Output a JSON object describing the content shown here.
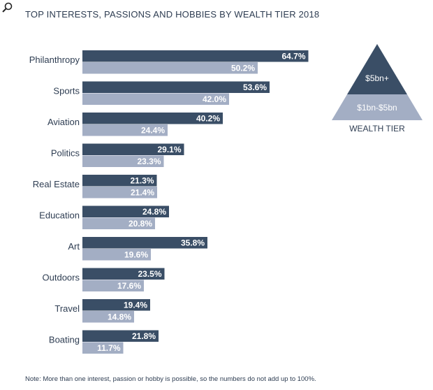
{
  "title": "TOP INTERESTS, PASSIONS AND HOBBIES BY WEALTH TIER 2018",
  "note": "Note: More than one interest, passion or hobby is possible, so the numbers do not add up to 100%.",
  "icons": {
    "corner": "magnifier-icon"
  },
  "colors": {
    "top_tier": "#3a4e66",
    "lower_tier": "#a3aec4",
    "text": "#2e3d52"
  },
  "legend": {
    "title": "WEALTH TIER",
    "top_label": "$5bn+",
    "bottom_label": "$1bn-$5bn"
  },
  "chart_data": {
    "type": "bar",
    "orientation": "horizontal",
    "title": "TOP INTERESTS, PASSIONS AND HOBBIES BY WEALTH TIER 2018",
    "categories": [
      "Philanthropy",
      "Sports",
      "Aviation",
      "Politics",
      "Real Estate",
      "Education",
      "Art",
      "Outdoors",
      "Travel",
      "Boating"
    ],
    "series": [
      {
        "name": "$5bn+",
        "values": [
          64.7,
          53.6,
          40.2,
          29.1,
          21.3,
          24.8,
          35.8,
          23.5,
          19.4,
          21.8
        ]
      },
      {
        "name": "$1bn-$5bn",
        "values": [
          50.2,
          42.0,
          24.4,
          23.3,
          21.4,
          20.8,
          19.6,
          17.6,
          14.8,
          11.7
        ]
      }
    ],
    "value_labels": [
      [
        "64.7%",
        "53.6%",
        "40.2%",
        "29.1%",
        "21.3%",
        "24.8%",
        "35.8%",
        "23.5%",
        "19.4%",
        "21.8%"
      ],
      [
        "50.2%",
        "42.0%",
        "24.4%",
        "23.3%",
        "21.4%",
        "20.8%",
        "19.6%",
        "17.6%",
        "14.8%",
        "11.7%"
      ]
    ],
    "grid": false,
    "legend_placement": "top-right"
  }
}
